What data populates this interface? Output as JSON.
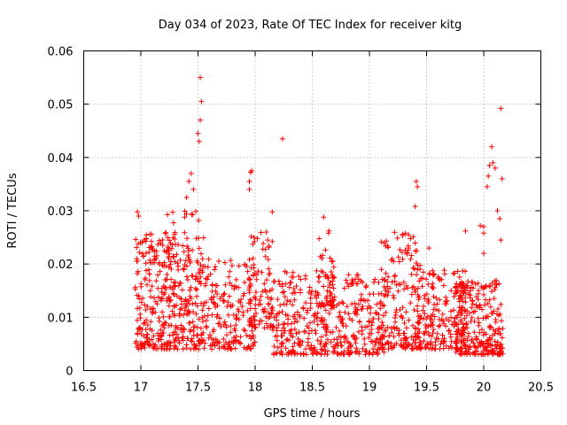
{
  "chart_data": {
    "type": "scatter",
    "title": "Day 034 of 2023, Rate Of TEC Index for receiver kitg",
    "xlabel": "GPS time / hours",
    "ylabel": "ROTI / TECUs",
    "xlim": [
      16.5,
      20.5
    ],
    "ylim": [
      0,
      0.06
    ],
    "x_ticks": [
      "16.5",
      "17",
      "17.5",
      "18",
      "18.5",
      "19",
      "19.5",
      "20",
      "20.5"
    ],
    "y_ticks": [
      "0",
      "0.01",
      "0.02",
      "0.03",
      "0.04",
      "0.05",
      "0.06"
    ],
    "grid": true,
    "marker": "+",
    "color": "#ff0000",
    "x_range_of_data": [
      16.95,
      20.15
    ],
    "notable_points": [
      {
        "x": 17.52,
        "y": 0.055
      },
      {
        "x": 17.53,
        "y": 0.0505
      },
      {
        "x": 17.52,
        "y": 0.047
      },
      {
        "x": 17.5,
        "y": 0.0445
      },
      {
        "x": 17.51,
        "y": 0.043
      },
      {
        "x": 18.24,
        "y": 0.0435
      },
      {
        "x": 20.15,
        "y": 0.0492
      },
      {
        "x": 20.07,
        "y": 0.042
      },
      {
        "x": 20.08,
        "y": 0.039
      },
      {
        "x": 20.05,
        "y": 0.0385
      },
      {
        "x": 20.1,
        "y": 0.038
      },
      {
        "x": 20.04,
        "y": 0.0365
      },
      {
        "x": 20.03,
        "y": 0.0345
      },
      {
        "x": 20.16,
        "y": 0.036
      },
      {
        "x": 20.12,
        "y": 0.03
      },
      {
        "x": 20.14,
        "y": 0.0285
      },
      {
        "x": 20.15,
        "y": 0.0245
      },
      {
        "x": 17.97,
        "y": 0.0375
      },
      {
        "x": 17.96,
        "y": 0.0372
      },
      {
        "x": 17.95,
        "y": 0.0355
      },
      {
        "x": 17.95,
        "y": 0.034
      },
      {
        "x": 19.41,
        "y": 0.0355
      },
      {
        "x": 19.42,
        "y": 0.0345
      },
      {
        "x": 19.4,
        "y": 0.0308
      },
      {
        "x": 17.44,
        "y": 0.037
      },
      {
        "x": 17.42,
        "y": 0.0355
      },
      {
        "x": 17.46,
        "y": 0.034
      },
      {
        "x": 17.4,
        "y": 0.0325
      },
      {
        "x": 16.97,
        "y": 0.0298
      },
      {
        "x": 16.98,
        "y": 0.029
      },
      {
        "x": 18.15,
        "y": 0.0298
      },
      {
        "x": 18.6,
        "y": 0.0288
      },
      {
        "x": 19.97,
        "y": 0.0272
      },
      {
        "x": 19.84,
        "y": 0.0262
      },
      {
        "x": 20.0,
        "y": 0.027
      },
      {
        "x": 20.0,
        "y": 0.0258
      },
      {
        "x": 19.52,
        "y": 0.023
      },
      {
        "x": 20.0,
        "y": 0.022
      }
    ],
    "clusters": [
      {
        "x_start": 16.95,
        "x_end": 17.45,
        "y_min": 0.004,
        "y_max": 0.026,
        "count": 320
      },
      {
        "x_start": 17.2,
        "x_end": 17.55,
        "y_min": 0.012,
        "y_max": 0.03,
        "count": 60
      },
      {
        "x_start": 17.45,
        "x_end": 18.0,
        "y_min": 0.004,
        "y_max": 0.021,
        "count": 240
      },
      {
        "x_start": 17.95,
        "x_end": 18.15,
        "y_min": 0.008,
        "y_max": 0.026,
        "count": 90
      },
      {
        "x_start": 18.15,
        "x_end": 18.6,
        "y_min": 0.003,
        "y_max": 0.019,
        "count": 200
      },
      {
        "x_start": 18.55,
        "x_end": 18.7,
        "y_min": 0.012,
        "y_max": 0.028,
        "count": 40
      },
      {
        "x_start": 18.6,
        "x_end": 19.15,
        "y_min": 0.003,
        "y_max": 0.018,
        "count": 240
      },
      {
        "x_start": 19.1,
        "x_end": 19.45,
        "y_min": 0.004,
        "y_max": 0.026,
        "count": 170
      },
      {
        "x_start": 19.4,
        "x_end": 19.85,
        "y_min": 0.004,
        "y_max": 0.019,
        "count": 200
      },
      {
        "x_start": 19.75,
        "x_end": 20.17,
        "y_min": 0.003,
        "y_max": 0.017,
        "count": 260
      }
    ]
  }
}
